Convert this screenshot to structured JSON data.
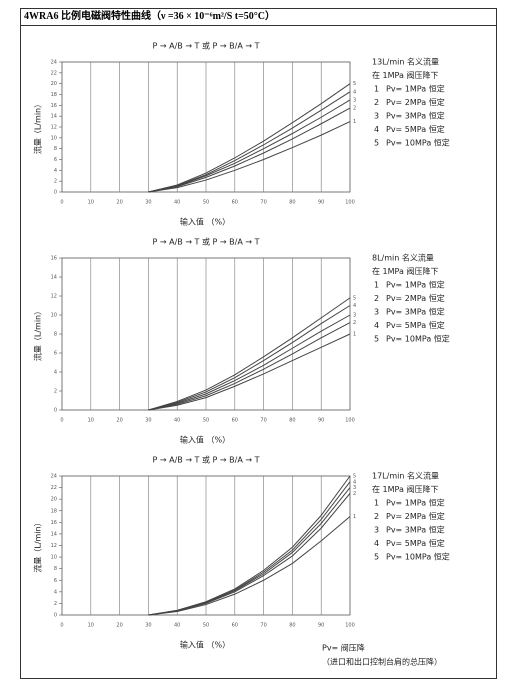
{
  "header": {
    "title": "4WRA6 比例电磁阀特性曲线（ν =36 × 10⁻⁶m²/S  t=50°C）"
  },
  "chart_data": [
    {
      "type": "line",
      "title": "P → A/B → T 或 P → B/A → T",
      "x_label": "输入值 （%）",
      "y_label": "流量（L/min）",
      "notes": [
        "13L/min 名义流量",
        "在 1MPa 阀压降下"
      ],
      "x": [
        30,
        40,
        50,
        60,
        70,
        80,
        90,
        100
      ],
      "series": [
        {
          "name": "Pv= 1MPa 恒定",
          "label": "1",
          "color": "#444",
          "values": [
            0,
            0.8,
            2.2,
            4,
            6,
            8.2,
            10.5,
            13
          ]
        },
        {
          "name": "Pv= 2MPa 恒定",
          "label": "2",
          "color": "#444",
          "values": [
            0,
            1,
            2.7,
            4.8,
            7.2,
            9.8,
            12.6,
            15.5
          ]
        },
        {
          "name": "Pv= 3MPa 恒定",
          "label": "3",
          "color": "#444",
          "values": [
            0,
            1.1,
            3,
            5.3,
            8,
            10.8,
            13.8,
            17
          ]
        },
        {
          "name": "Pv= 5MPa 恒定",
          "label": "4",
          "color": "#444",
          "values": [
            0,
            1.2,
            3.2,
            5.8,
            8.7,
            11.8,
            15.1,
            18.5
          ]
        },
        {
          "name": "Pv= 10MPa 恒定",
          "label": "5",
          "color": "#444",
          "values": [
            0,
            1.3,
            3.5,
            6.3,
            9.4,
            12.8,
            16.3,
            20
          ]
        }
      ],
      "xlim": [
        0,
        100
      ],
      "xticks": [
        0,
        10,
        20,
        30,
        40,
        50,
        60,
        70,
        80,
        90,
        100
      ],
      "ylim": [
        0,
        24
      ],
      "yticks": [
        0,
        2,
        4,
        6,
        8,
        10,
        12,
        14,
        16,
        18,
        20,
        22,
        24
      ],
      "grid": "x"
    },
    {
      "type": "line",
      "title": "P → A/B → T 或 P → B/A → T",
      "x_label": "输入值 （%）",
      "y_label": "流量（L/min）",
      "notes": [
        "8L/min 名义流量",
        "在 1MPa 阀压降下"
      ],
      "x": [
        30,
        40,
        50,
        60,
        70,
        80,
        90,
        100
      ],
      "series": [
        {
          "name": "Pv= 1MPa 恒定",
          "label": "1",
          "color": "#444",
          "values": [
            0,
            0.5,
            1.3,
            2.5,
            3.8,
            5.2,
            6.6,
            8
          ]
        },
        {
          "name": "Pv= 2MPa 恒定",
          "label": "2",
          "color": "#444",
          "values": [
            0,
            0.6,
            1.5,
            2.8,
            4.3,
            5.9,
            7.6,
            9.2
          ]
        },
        {
          "name": "Pv= 3MPa 恒定",
          "label": "3",
          "color": "#444",
          "values": [
            0,
            0.7,
            1.7,
            3.1,
            4.7,
            6.5,
            8.3,
            10
          ]
        },
        {
          "name": "Pv= 5MPa 恒定",
          "label": "4",
          "color": "#444",
          "values": [
            0,
            0.8,
            1.9,
            3.4,
            5.2,
            7.1,
            9.1,
            11
          ]
        },
        {
          "name": "Pv= 10MPa 恒定",
          "label": "5",
          "color": "#444",
          "values": [
            0,
            0.9,
            2.1,
            3.7,
            5.6,
            7.6,
            9.7,
            11.8
          ]
        }
      ],
      "xlim": [
        0,
        100
      ],
      "xticks": [
        0,
        10,
        20,
        30,
        40,
        50,
        60,
        70,
        80,
        90,
        100
      ],
      "ylim": [
        0,
        16
      ],
      "yticks": [
        0,
        2,
        4,
        6,
        8,
        10,
        12,
        14,
        16
      ],
      "grid": "x"
    },
    {
      "type": "line",
      "title": "P → A/B → T 或 P → B/A → T",
      "x_label": "输入值 （%）",
      "y_label": "流量（L/min）",
      "notes": [
        "17L/min 名义流量",
        "在 1MPa 阀压降下"
      ],
      "x": [
        30,
        40,
        50,
        60,
        70,
        80,
        90,
        100
      ],
      "series": [
        {
          "name": "Pv= 1MPa 恒定",
          "label": "1",
          "color": "#444",
          "values": [
            0,
            0.6,
            1.8,
            3.6,
            6,
            8.9,
            12.8,
            17
          ]
        },
        {
          "name": "Pv= 2MPa 恒定",
          "label": "2",
          "color": "#444",
          "values": [
            0,
            0.7,
            2,
            4,
            6.8,
            10.2,
            15,
            21
          ]
        },
        {
          "name": "Pv= 3MPa 恒定",
          "label": "3",
          "color": "#444",
          "values": [
            0,
            0.7,
            2.1,
            4.2,
            7.1,
            10.8,
            15.8,
            22
          ]
        },
        {
          "name": "Pv= 5MPa 恒定",
          "label": "4",
          "color": "#444",
          "values": [
            0,
            0.8,
            2.2,
            4.3,
            7.4,
            11.2,
            16.5,
            23
          ]
        },
        {
          "name": "Pv= 10MPa 恒定",
          "label": "5",
          "color": "#444",
          "values": [
            0,
            0.8,
            2.3,
            4.5,
            7.7,
            11.7,
            17.2,
            24
          ]
        }
      ],
      "xlim": [
        0,
        100
      ],
      "xticks": [
        0,
        10,
        20,
        30,
        40,
        50,
        60,
        70,
        80,
        90,
        100
      ],
      "ylim": [
        0,
        24
      ],
      "yticks": [
        0,
        2,
        4,
        6,
        8,
        10,
        12,
        14,
        16,
        18,
        20,
        22,
        24
      ],
      "grid": "x"
    }
  ],
  "footnote": {
    "line1": "Pv= 阀压降",
    "line2": "（进口和出口控制台肩的总压降）"
  }
}
